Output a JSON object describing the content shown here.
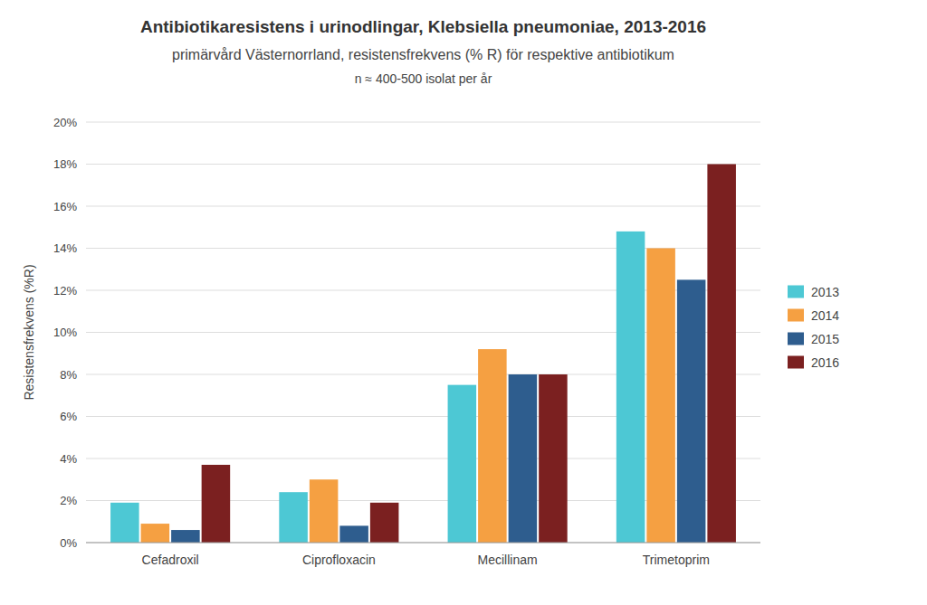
{
  "chart_data": {
    "type": "bar",
    "title": "Antibiotikaresistens i urinodlingar, Klebsiella pneumoniae, 2013-2016",
    "subtitle": "primärvård Västernorrland, resistensfrekvens (% R) för respektive antibiotikum",
    "annotations": [
      "n ≈ 400-500 isolat per år"
    ],
    "y_label": "Resistensfrekvens (%R)",
    "categories": [
      "Cefadroxil",
      "Ciprofloxacin",
      "Mecillinam",
      "Trimetoprim"
    ],
    "series": [
      {
        "name": "2013",
        "color": "#4DC8D4",
        "values": [
          1.9,
          2.4,
          7.5,
          14.8
        ]
      },
      {
        "name": "2014",
        "color": "#F5A042",
        "values": [
          0.9,
          3.0,
          9.2,
          14.0
        ]
      },
      {
        "name": "2015",
        "color": "#2E5D8E",
        "values": [
          0.6,
          0.8,
          8.0,
          12.5
        ]
      },
      {
        "name": "2016",
        "color": "#7B2020",
        "values": [
          3.7,
          1.9,
          8.0,
          18.0
        ]
      }
    ],
    "ylim": [
      0,
      20
    ],
    "yticks": [
      {
        "value": 0,
        "label": "0%"
      },
      {
        "value": 2,
        "label": "2%"
      },
      {
        "value": 4,
        "label": "4%"
      },
      {
        "value": 6,
        "label": "6%"
      },
      {
        "value": 8,
        "label": "8%"
      },
      {
        "value": 10,
        "label": "10%"
      },
      {
        "value": 12,
        "label": "12%"
      },
      {
        "value": 14,
        "label": "14%"
      },
      {
        "value": 16,
        "label": "16%"
      },
      {
        "value": 18,
        "label": "18%"
      },
      {
        "value": 20,
        "label": "20%"
      }
    ],
    "grid": true,
    "legend": "right"
  }
}
